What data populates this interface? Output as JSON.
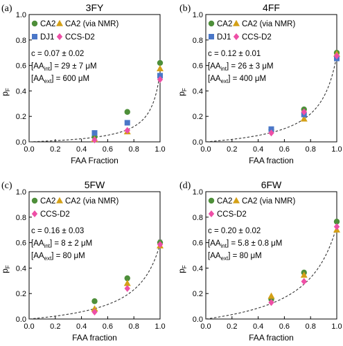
{
  "chart_data": [
    {
      "type": "scatter",
      "panel_label": "(a)",
      "title": "3FY",
      "xlabel": "FAA Fraction",
      "ylabel": "p",
      "ylabel_sub": "F",
      "xlim": [
        0,
        1
      ],
      "ylim": [
        0,
        1
      ],
      "xticks": [
        "0.0",
        "0.2",
        "0.4",
        "0.6",
        "0.8",
        "1.0"
      ],
      "yticks": [
        "0.0",
        "0.2",
        "0.4",
        "0.6",
        "0.8",
        "1.0"
      ],
      "legend": [
        "CA2",
        "CA2 (via NMR)",
        "DJ1",
        "CCS-D2"
      ],
      "series": [
        {
          "name": "CA2",
          "marker": "circle",
          "color": "#4e8f3a",
          "x": [
            0.5,
            0.75,
            1.0
          ],
          "y": [
            0.04,
            0.235,
            0.62
          ],
          "err": [
            0,
            0.01,
            0.015
          ]
        },
        {
          "name": "CA2 (via NMR)",
          "marker": "triangle",
          "color": "#d4a017",
          "x": [
            0.5,
            0.75,
            1.0
          ],
          "y": [
            0.02,
            0.08,
            0.575
          ]
        },
        {
          "name": "DJ1",
          "marker": "square",
          "color": "#4a77c8",
          "x": [
            0.5,
            0.75,
            1.0
          ],
          "y": [
            0.07,
            0.15,
            0.52
          ],
          "err": [
            0,
            0,
            0.015
          ]
        },
        {
          "name": "CCS-D2",
          "marker": "diamond",
          "color": "#ee4fa6",
          "x": [
            0.5,
            0.75,
            1.0
          ],
          "y": [
            0.015,
            0.09,
            0.49
          ]
        }
      ],
      "fit": {
        "c": 0.07,
        "scale": 0.55
      },
      "annotations": [
        [
          {
            "t": "c = 0.07 ± 0.02"
          }
        ],
        [
          {
            "t": "[AA"
          },
          {
            "t": "int",
            "sub": true
          },
          {
            "t": "] = 29 ± 7 μM"
          }
        ],
        [
          {
            "t": "[AA"
          },
          {
            "t": "ext",
            "sub": true
          },
          {
            "t": "] = 600 μM"
          }
        ]
      ]
    },
    {
      "type": "scatter",
      "panel_label": "(b)",
      "title": "4FF",
      "xlabel": "FAA fraction",
      "ylabel": "p",
      "ylabel_sub": "F",
      "xlim": [
        0,
        1
      ],
      "ylim": [
        0,
        1
      ],
      "xticks": [
        "0.0",
        "0.2",
        "0.4",
        "0.6",
        "0.8",
        "1.0"
      ],
      "yticks": [
        "0.0",
        "0.2",
        "0.4",
        "0.6",
        "0.8",
        "1.0"
      ],
      "legend": [
        "CA2",
        "CA2 (via NMR)",
        "DJ1",
        "CCS-D2"
      ],
      "series": [
        {
          "name": "CA2",
          "marker": "circle",
          "color": "#4e8f3a",
          "x": [
            0.5,
            0.75,
            1.0
          ],
          "y": [
            0.095,
            0.255,
            0.7
          ],
          "err": [
            0,
            0.01,
            0.01
          ]
        },
        {
          "name": "CA2 (via NMR)",
          "marker": "triangle",
          "color": "#d4a017",
          "x": [
            0.75,
            1.0
          ],
          "y": [
            0.18,
            0.69
          ]
        },
        {
          "name": "DJ1",
          "marker": "square",
          "color": "#4a77c8",
          "x": [
            0.5,
            0.75,
            1.0
          ],
          "y": [
            0.1,
            0.215,
            0.655
          ],
          "err": [
            0,
            0,
            0.012
          ]
        },
        {
          "name": "CCS-D2",
          "marker": "diamond",
          "color": "#ee4fa6",
          "x": [
            0.5,
            0.75,
            1.0
          ],
          "y": [
            0.07,
            0.235,
            0.675
          ]
        }
      ],
      "fit": {
        "c": 0.12,
        "scale": 0.68
      },
      "annotations": [
        [
          {
            "t": "c = 0.12 ± 0.01"
          }
        ],
        [
          {
            "t": "[AA"
          },
          {
            "t": "int",
            "sub": true
          },
          {
            "t": "] = 26 ± 3 μM"
          }
        ],
        [
          {
            "t": "[AA"
          },
          {
            "t": "ext",
            "sub": true
          },
          {
            "t": "] = 400 μM"
          }
        ]
      ]
    },
    {
      "type": "scatter",
      "panel_label": "(c)",
      "title": "5FW",
      "xlabel": "FAA fraction",
      "ylabel": "p",
      "ylabel_sub": "F",
      "xlim": [
        0,
        1
      ],
      "ylim": [
        0,
        1
      ],
      "xticks": [
        "0.0",
        "0.2",
        "0.4",
        "0.6",
        "0.8",
        "1.0"
      ],
      "yticks": [
        "0.0",
        "0.2",
        "0.4",
        "0.6",
        "0.8",
        "1.0"
      ],
      "legend": [
        "CA2",
        "CA2 (via NMR)",
        "CCS-D2"
      ],
      "series": [
        {
          "name": "CA2",
          "marker": "circle",
          "color": "#4e8f3a",
          "x": [
            0.5,
            0.75,
            1.0
          ],
          "y": [
            0.14,
            0.32,
            0.6
          ],
          "err": [
            0,
            0.01,
            0.02
          ]
        },
        {
          "name": "CA2 (via NMR)",
          "marker": "triangle",
          "color": "#d4a017",
          "x": [
            0.5,
            0.75,
            1.0
          ],
          "y": [
            0.08,
            0.28,
            0.575
          ]
        },
        {
          "name": "CCS-D2",
          "marker": "diamond",
          "color": "#ee4fa6",
          "x": [
            0.5,
            0.75,
            1.0
          ],
          "y": [
            0.055,
            0.24,
            0.585
          ]
        }
      ],
      "fit": {
        "c": 0.16,
        "scale": 0.59
      },
      "annotations": [
        [
          {
            "t": "c = 0.16 ± 0.03"
          }
        ],
        [
          {
            "t": "[AA"
          },
          {
            "t": "int",
            "sub": true
          },
          {
            "t": "] = 8 ± 2 μM"
          }
        ],
        [
          {
            "t": "[AA"
          },
          {
            "t": "ext",
            "sub": true
          },
          {
            "t": "] = 80 μM"
          }
        ]
      ]
    },
    {
      "type": "scatter",
      "panel_label": "(d)",
      "title": "6FW",
      "xlabel": "FAA fraction",
      "ylabel": "p",
      "ylabel_sub": "F",
      "xlim": [
        0,
        1
      ],
      "ylim": [
        0,
        1
      ],
      "xticks": [
        "0.0",
        "0.2",
        "0.4",
        "0.6",
        "0.8",
        "1.0"
      ],
      "yticks": [
        "0.0",
        "0.2",
        "0.4",
        "0.6",
        "0.8",
        "1.0"
      ],
      "legend": [
        "CA2",
        "CA2 (via NMR)",
        "CCS-D2"
      ],
      "series": [
        {
          "name": "CA2",
          "marker": "circle",
          "color": "#4e8f3a",
          "x": [
            0.5,
            0.75,
            1.0
          ],
          "y": [
            0.155,
            0.365,
            0.765
          ],
          "err": [
            0,
            0.01,
            0.012
          ]
        },
        {
          "name": "CA2 (via NMR)",
          "marker": "triangle",
          "color": "#d4a017",
          "x": [
            0.5,
            0.75,
            1.0
          ],
          "y": [
            0.18,
            0.345,
            0.7
          ]
        },
        {
          "name": "CCS-D2",
          "marker": "diamond",
          "color": "#ee4fa6",
          "x": [
            0.5,
            0.75,
            1.0
          ],
          "y": [
            0.13,
            0.295,
            0.725
          ]
        }
      ],
      "fit": {
        "c": 0.2,
        "scale": 0.73
      },
      "annotations": [
        [
          {
            "t": "c = 0.20 ± 0.02"
          }
        ],
        [
          {
            "t": "[AA"
          },
          {
            "t": "int",
            "sub": true
          },
          {
            "t": "] = 5.8 ± 0.8 μM"
          }
        ],
        [
          {
            "t": "[AA"
          },
          {
            "t": "ext",
            "sub": true
          },
          {
            "t": "] = 80 μM"
          }
        ]
      ]
    }
  ]
}
